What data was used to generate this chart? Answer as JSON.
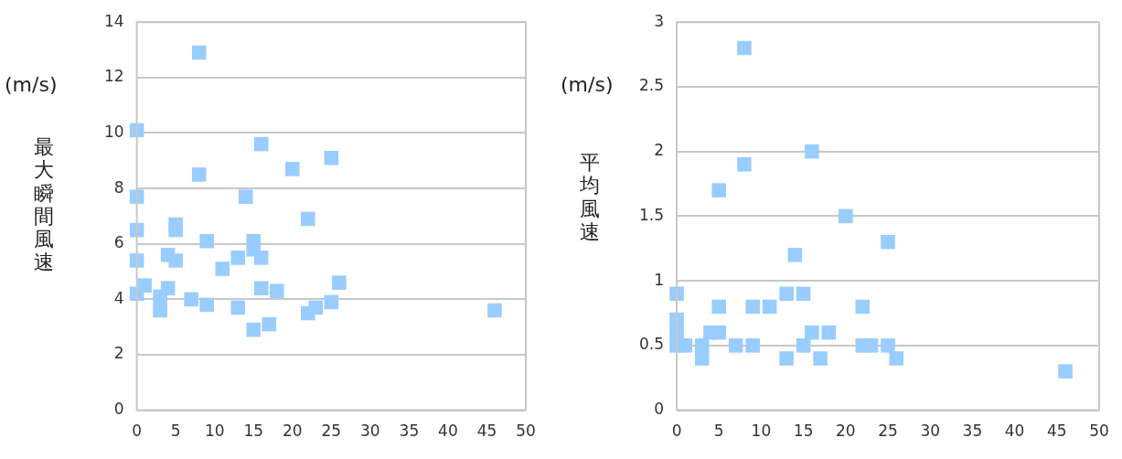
{
  "chart_data": [
    {
      "type": "scatter",
      "ylabel": "最大瞬間風速",
      "annotations": [
        "(m/s)"
      ],
      "marker": "square",
      "grid": "y",
      "xlim": [
        0,
        50
      ],
      "xticks": [
        0,
        5,
        10,
        15,
        20,
        25,
        30,
        35,
        40,
        45,
        50
      ],
      "ylim": [
        0,
        14
      ],
      "yticks": [
        0,
        2,
        4,
        6,
        8,
        10,
        12,
        14
      ],
      "series": [
        {
          "color": "#99ccff",
          "x": [
            0,
            0,
            0,
            0,
            0,
            1,
            3,
            3,
            4,
            4,
            5,
            5,
            5,
            7,
            8,
            8,
            9,
            9,
            11,
            13,
            13,
            14,
            15,
            15,
            15,
            16,
            16,
            16,
            17,
            18,
            20,
            22,
            22,
            23,
            25,
            25,
            26,
            46
          ],
          "values": [
            10.1,
            7.7,
            6.5,
            5.4,
            4.2,
            4.5,
            3.6,
            4.1,
            4.4,
            5.6,
            6.7,
            6.5,
            5.4,
            4.0,
            12.9,
            8.5,
            6.1,
            3.8,
            5.1,
            5.5,
            3.7,
            7.7,
            6.1,
            5.8,
            2.9,
            9.6,
            5.5,
            4.4,
            3.1,
            4.3,
            8.7,
            6.9,
            3.5,
            3.7,
            9.1,
            3.9,
            4.6,
            3.6
          ]
        }
      ]
    },
    {
      "type": "scatter",
      "ylabel": "平均風速",
      "annotations": [
        "(m/s)"
      ],
      "marker": "square",
      "grid": "y",
      "xlim": [
        0,
        50
      ],
      "xticks": [
        0,
        5,
        10,
        15,
        20,
        25,
        30,
        35,
        40,
        45,
        50
      ],
      "ylim": [
        0,
        3
      ],
      "yticks": [
        0,
        0.5,
        1,
        1.5,
        2,
        2.5,
        3
      ],
      "series": [
        {
          "color": "#99ccff",
          "x": [
            0,
            0,
            0,
            0,
            1,
            3,
            3,
            4,
            5,
            5,
            5,
            7,
            8,
            8,
            9,
            9,
            11,
            13,
            13,
            14,
            15,
            15,
            16,
            16,
            17,
            18,
            20,
            22,
            22,
            23,
            25,
            25,
            26,
            46
          ],
          "values": [
            0.9,
            0.7,
            0.6,
            0.5,
            0.5,
            0.5,
            0.4,
            0.6,
            0.6,
            0.8,
            1.7,
            0.5,
            2.8,
            1.9,
            0.8,
            0.5,
            0.8,
            0.9,
            0.4,
            1.2,
            0.9,
            0.5,
            2.0,
            0.6,
            0.4,
            0.6,
            1.5,
            0.8,
            0.5,
            0.5,
            1.3,
            0.5,
            0.4,
            0.3
          ]
        }
      ]
    }
  ]
}
